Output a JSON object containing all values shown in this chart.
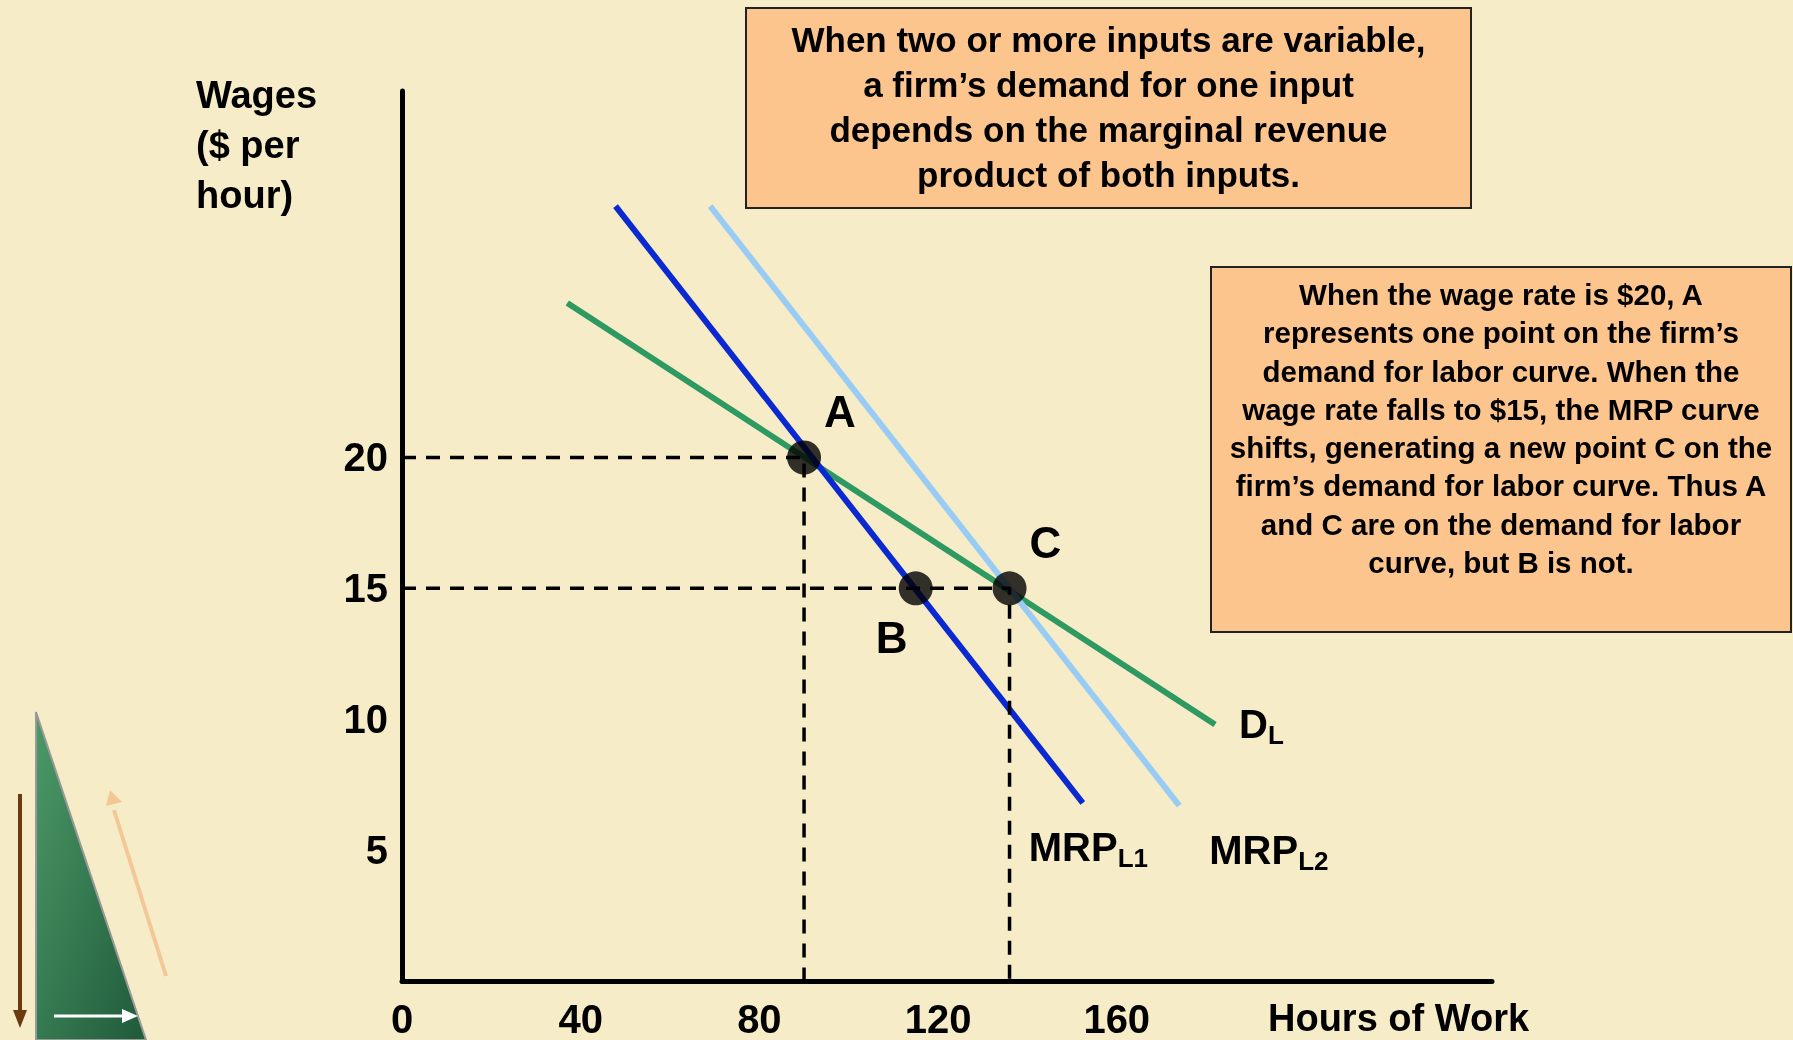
{
  "chart_data": {
    "type": "line",
    "xlabel": "Hours of Work",
    "ylabel": "Wages ($ per hour)",
    "xlim": [
      0,
      244
    ],
    "xticks": [
      0,
      40,
      80,
      120,
      160
    ],
    "ylim": [
      0,
      34
    ],
    "yticks": [
      5,
      10,
      15,
      20
    ],
    "grid": false,
    "marker": "none",
    "series": [
      {
        "name": "D$_{L}$",
        "color": "#2e9960",
        "x": [
          37,
          182
        ],
        "values": [
          25.9,
          9.8
        ]
      },
      {
        "name": "MRP$_{L1}$",
        "color": "#0a29d0",
        "x": [
          47.8,
          152.4
        ],
        "values": [
          29.6,
          6.8
        ]
      },
      {
        "name": "MRP$_{L2}$",
        "color": "#99ccf5",
        "x": [
          69,
          174
        ],
        "values": [
          29.6,
          6.7
        ]
      },
      {
        "color": "#000000",
        "line_style": "dashed",
        "x": [
          0,
          90,
          90
        ],
        "values": [
          20,
          20,
          0
        ]
      },
      {
        "color": "#000000",
        "line_style": "dashed",
        "x": [
          0,
          136,
          136
        ],
        "values": [
          15,
          15,
          0
        ]
      },
      {
        "type": "scatter",
        "marker": "circle",
        "color": "#000000",
        "x": [
          90,
          115,
          136
        ],
        "values": [
          20,
          15,
          15
        ]
      }
    ],
    "annotations": [
      {
        "text": "A",
        "x": 90,
        "y": 20
      },
      {
        "text": "B",
        "x": 115,
        "y": 15
      },
      {
        "text": "C",
        "x": 136,
        "y": 15
      },
      "When two or more inputs are variable, a firm’s demand for one input depends on the marginal revenue product of both inputs.",
      "When the wage rate is $20, A represents one point on the firm’s demand for labor curve. When the wage rate falls to $15, the MRP curve shifts, generating a new point C on the firm’s demand for labor curve.  Thus A and C are on the demand for labor curve, but B is not."
    ]
  }
}
